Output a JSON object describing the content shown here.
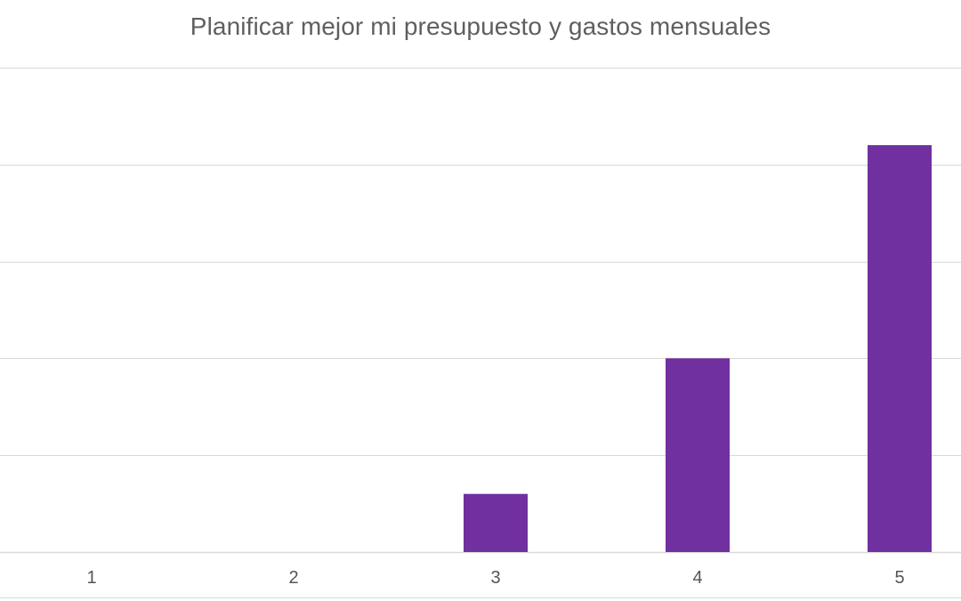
{
  "chart_data": {
    "type": "bar",
    "title": "Planificar mejor mi presupuesto y gastos mensuales",
    "categories": [
      "1",
      "2",
      "3",
      "4",
      "5"
    ],
    "values": [
      0,
      0,
      3,
      10,
      21
    ],
    "ylim": [
      0,
      25
    ],
    "y_gridline_step": 5,
    "grid": true,
    "bar_color": "#7030a0",
    "gridline_color": "#d9d9d9",
    "y_tick_labels_visible": false,
    "legend": "none"
  }
}
